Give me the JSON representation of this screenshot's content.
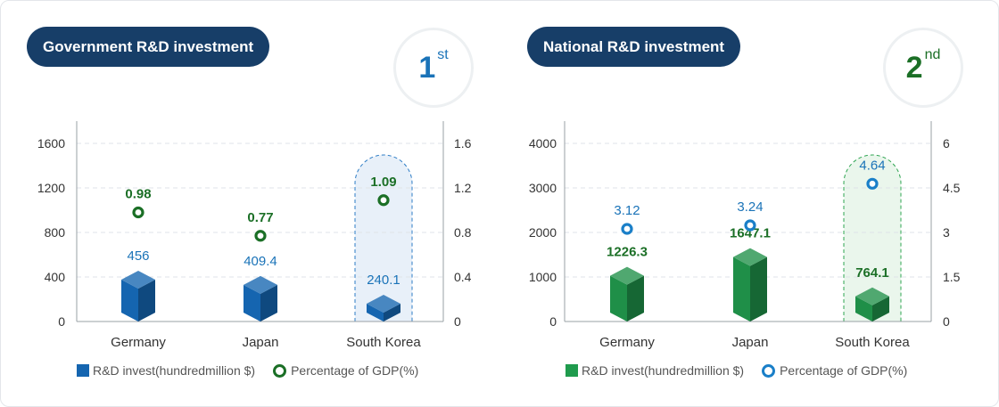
{
  "colors": {
    "navy": "#173e68",
    "blue_bar": "#1565b0",
    "blue_text": "#1a73b8",
    "green_bar": "#1f8f48",
    "green_text": "#1b6f26",
    "ring_blue": "#1a7fc8",
    "ring_green": "#1b6f26"
  },
  "chart_data": [
    {
      "type": "bar",
      "title": "Government R&D investment",
      "rank": {
        "number": "1",
        "suffix": "st"
      },
      "categories": [
        "Germany",
        "Japan",
        "South Korea"
      ],
      "series": [
        {
          "name": "R&D invest(hundredmillion $)",
          "type": "bar",
          "axis": "left",
          "values": [
            456,
            409.4,
            240.1
          ],
          "labels": [
            "456",
            "409.4",
            "240.1"
          ]
        },
        {
          "name": "Percentage of GDP(%)",
          "type": "scatter",
          "axis": "right",
          "values": [
            0.98,
            0.77,
            1.09
          ],
          "labels": [
            "0.98",
            "0.77",
            "1.09"
          ]
        }
      ],
      "y_left": {
        "ticks": [
          "0",
          "400",
          "800",
          "1200",
          "1600"
        ],
        "lim": [
          0,
          1600
        ]
      },
      "y_right": {
        "ticks": [
          "0",
          "0.4",
          "0.8",
          "1.2",
          "1.6"
        ],
        "lim": [
          0,
          1.6
        ]
      },
      "highlight_category": "South Korea",
      "bar_color": "#1565b0",
      "bar_label_color": "#1a73b8",
      "point_color": "#1b6f26",
      "point_label_color": "#1b6f26",
      "highlight_fill": "#e8f0f9",
      "highlight_stroke": "#2e7dc6",
      "grid": true,
      "legend_placement": "bottom"
    },
    {
      "type": "bar",
      "title": "National R&D investment",
      "rank": {
        "number": "2",
        "suffix": "nd"
      },
      "categories": [
        "Germany",
        "Japan",
        "South Korea"
      ],
      "series": [
        {
          "name": "R&D invest(hundredmillion $)",
          "type": "bar",
          "axis": "left",
          "values": [
            1226.3,
            1647.1,
            764.1
          ],
          "labels": [
            "1226.3",
            "1647.1",
            "764.1"
          ]
        },
        {
          "name": "Percentage of GDP(%)",
          "type": "scatter",
          "axis": "right",
          "values": [
            3.12,
            3.24,
            4.64
          ],
          "labels": [
            "3.12",
            "3.24",
            "4.64"
          ]
        }
      ],
      "y_left": {
        "ticks": [
          "0",
          "1000",
          "2000",
          "3000",
          "4000"
        ],
        "lim": [
          0,
          4000
        ]
      },
      "y_right": {
        "ticks": [
          "0",
          "1.5",
          "3",
          "4.5",
          "6"
        ],
        "lim": [
          0,
          6
        ]
      },
      "highlight_category": "South Korea",
      "bar_color": "#1f8f48",
      "bar_label_color": "#1b6f26",
      "point_color": "#1a7fc8",
      "point_label_color": "#1a73b8",
      "highlight_fill": "#eaf6ec",
      "highlight_stroke": "#2fa552",
      "grid": true,
      "legend_placement": "bottom"
    }
  ]
}
